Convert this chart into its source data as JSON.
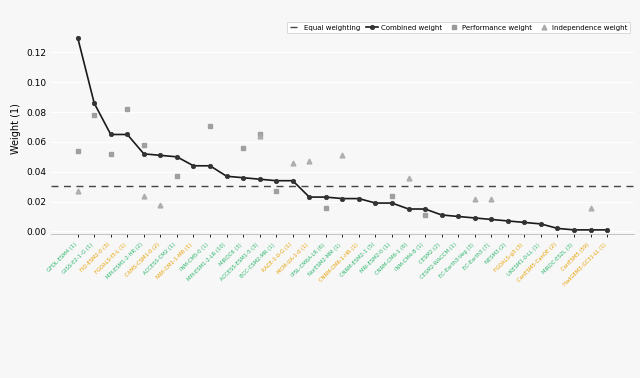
{
  "models": [
    "GFDL-ESM4 (1)",
    "GISS-E2-1-G (1)",
    "FIO-ESM2-0 (3)",
    "FGOALS-f3-L (1)",
    "MPI-ESM1-2-HR (2)",
    "CAMS-CSM1-0 (2)",
    "ACCESS-CM2 (1)",
    "NWI-CM1-1-MR (1)",
    "INM-CM5-0 (1)",
    "MPI-ESM1-2-LR (10)",
    "MIROC6 (3)",
    "ACCESS-ESM1-5 (3)",
    "BCC-CSM2-MR (1)",
    "KACE-1-0-G (1)",
    "MCM-UA-1-0 (1)",
    "IPSL-CM6A-LR (6)",
    "NorESM2-MM (1)",
    "CNRM-CM6-1-HR (1)",
    "CNRM-ESM2-1 (5)",
    "MRI-ESM2-0 (1)",
    "CNRM-CM6-1 (6)",
    "INM-CM4-8 (1)",
    "CESM2 (2)",
    "CESM2-WACCM (1)",
    "EC-Earth3-Veg (3)",
    "EC-Earth3 (7)",
    "NESM3 (2)",
    "FGOALS-g3 (3)",
    "UKESM1-0-LL (1)",
    "CanESM5-CanOE (2)",
    "MIROC-ES2L (3)",
    "CanESM5 (59)",
    "HadGEM3-GC31-LL (1)"
  ],
  "model_colors": [
    "#2ab56c",
    "#2ab56c",
    "#e8a000",
    "#e8a000",
    "#2ab56c",
    "#e8a000",
    "#2ab56c",
    "#e8a000",
    "#2ab56c",
    "#2ab56c",
    "#2ab56c",
    "#2ab56c",
    "#2ab56c",
    "#e8a000",
    "#e8a000",
    "#2ab56c",
    "#2ab56c",
    "#e8a000",
    "#2ab56c",
    "#2ab56c",
    "#2ab56c",
    "#2ab56c",
    "#2ab56c",
    "#2ab56c",
    "#2ab56c",
    "#2ab56c",
    "#2ab56c",
    "#e8a000",
    "#2ab56c",
    "#e8a000",
    "#2ab56c",
    "#e8a000",
    "#e8a000"
  ],
  "combined_weight": [
    0.13,
    0.086,
    0.065,
    0.065,
    0.052,
    0.051,
    0.05,
    0.044,
    0.044,
    0.037,
    0.036,
    0.035,
    0.034,
    0.034,
    0.023,
    0.023,
    0.022,
    0.022,
    0.019,
    0.019,
    0.015,
    0.015,
    0.011,
    0.01,
    0.009,
    0.008,
    0.007,
    0.006,
    0.005,
    0.002,
    0.001,
    0.001,
    0.001
  ],
  "performance_weight": [
    0.054,
    0.078,
    0.052,
    0.082,
    0.058,
    null,
    0.037,
    null,
    0.071,
    null,
    0.056,
    0.065,
    0.027,
    null,
    null,
    0.016,
    null,
    null,
    null,
    0.024,
    null,
    0.011,
    null,
    null,
    null,
    null,
    null,
    null,
    null,
    null,
    null,
    null,
    null
  ],
  "independence_weight": [
    0.027,
    null,
    null,
    null,
    0.024,
    0.018,
    null,
    null,
    null,
    null,
    null,
    0.064,
    null,
    0.046,
    0.047,
    null,
    0.051,
    null,
    null,
    null,
    0.036,
    null,
    null,
    null,
    0.022,
    0.022,
    null,
    null,
    null,
    null,
    null,
    0.016,
    null
  ],
  "equal_weight": 0.0303,
  "ylabel": "Weight (1)",
  "ylim": [
    -0.002,
    0.14
  ],
  "yticks": [
    0.0,
    0.02,
    0.04,
    0.06,
    0.08,
    0.1,
    0.12
  ],
  "bg_color": "#f7f7f7",
  "grid_color": "#ffffff",
  "combined_color": "#1a1a1a",
  "perf_color": "#999999",
  "indep_color": "#aaaaaa",
  "equal_color": "#444444"
}
